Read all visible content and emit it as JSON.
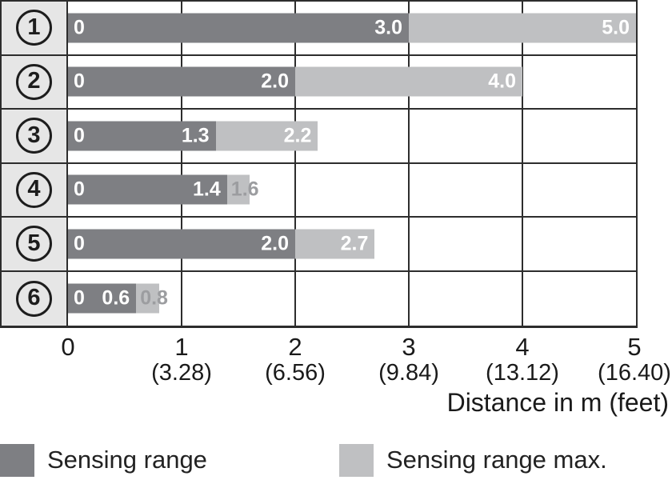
{
  "chart_data": {
    "type": "bar",
    "orientation": "horizontal",
    "title": "",
    "categories": [
      "①",
      "②",
      "③",
      "④",
      "⑤",
      "⑥"
    ],
    "series": [
      {
        "name": "Sensing range",
        "values": [
          3.0,
          2.0,
          1.3,
          1.4,
          2.0,
          0.6
        ]
      },
      {
        "name": "Sensing range max.",
        "values": [
          5.0,
          4.0,
          2.2,
          1.6,
          2.7,
          0.8
        ]
      }
    ],
    "xlabel": "Distance in m (feet)",
    "xlim": [
      0,
      5
    ],
    "xticks_m": [
      "0",
      "1",
      "2",
      "3",
      "4",
      "5"
    ],
    "xticks_feet": [
      "",
      "(3.28)",
      "(6.56)",
      "(9.84)",
      "(13.12)",
      "(16.40)"
    ],
    "grid": true,
    "legend_position": "bottom"
  },
  "rows": [
    {
      "id": "1",
      "zero_label": "0",
      "range_label": "3.0",
      "max_label": "5.0",
      "range_m": 3.0,
      "max_m": 5.0,
      "max_label_placement": "inside"
    },
    {
      "id": "2",
      "zero_label": "0",
      "range_label": "2.0",
      "max_label": "4.0",
      "range_m": 2.0,
      "max_m": 4.0,
      "max_label_placement": "inside"
    },
    {
      "id": "3",
      "zero_label": "0",
      "range_label": "1.3",
      "max_label": "2.2",
      "range_m": 1.3,
      "max_m": 2.2,
      "max_label_placement": "inside"
    },
    {
      "id": "4",
      "zero_label": "0",
      "range_label": "1.4",
      "max_label": "1.6",
      "range_m": 1.4,
      "max_m": 1.6,
      "max_label_placement": "overflow"
    },
    {
      "id": "5",
      "zero_label": "0",
      "range_label": "2.0",
      "max_label": "2.7",
      "range_m": 2.0,
      "max_m": 2.7,
      "max_label_placement": "inside"
    },
    {
      "id": "6",
      "zero_label": "0",
      "range_label": "0.6",
      "max_label": "0.8",
      "range_m": 0.6,
      "max_m": 0.8,
      "max_label_placement": "overflow"
    }
  ],
  "axis": {
    "ticks": [
      {
        "m": "0",
        "feet": ""
      },
      {
        "m": "1",
        "feet": "(3.28)"
      },
      {
        "m": "2",
        "feet": "(6.56)"
      },
      {
        "m": "3",
        "feet": "(9.84)"
      },
      {
        "m": "4",
        "feet": "(13.12)"
      },
      {
        "m": "5",
        "feet": "(16.40)"
      }
    ],
    "xlabel": "Distance in m (feet)"
  },
  "legend": {
    "items": [
      {
        "label": "Sensing range",
        "color": "#7e7f83"
      },
      {
        "label": "Sensing range max.",
        "color": "#bfc0c2"
      }
    ]
  },
  "colors": {
    "bar_dark": "#7e7f83",
    "bar_light": "#bfc0c2",
    "row_header_bg": "#e6e6e6",
    "grid_border": "#2d2d2d",
    "overflow_label": "#9c9da0",
    "bar_label": "#ffffff",
    "axis_text": "#1a1a1a"
  }
}
